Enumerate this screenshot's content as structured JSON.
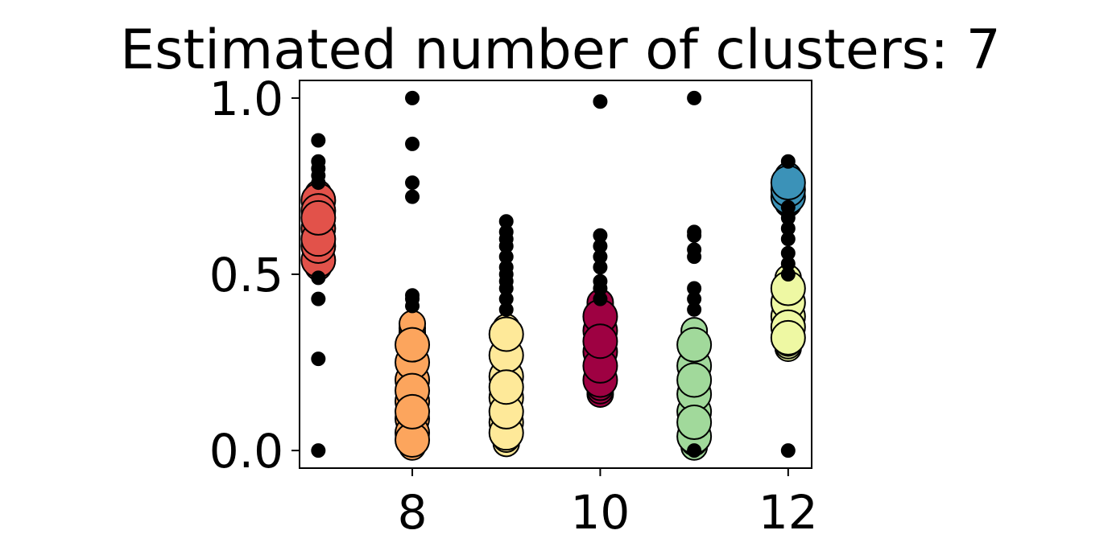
{
  "chart_data": {
    "type": "scatter",
    "title": "Estimated number of clusters: 7",
    "xlabel": "",
    "ylabel": "",
    "xlim": [
      6.8,
      12.25
    ],
    "ylim": [
      -0.05,
      1.05
    ],
    "xticks": [
      8,
      10,
      12
    ],
    "xtick_labels": [
      "8",
      "10",
      "12"
    ],
    "yticks": [
      0.0,
      0.5,
      1.0
    ],
    "ytick_labels": [
      "0.0",
      "0.5",
      "1.0"
    ],
    "grid": false,
    "legend": "none",
    "noise_color": "#000000",
    "clusters": [
      {
        "x": 7,
        "color": "#e2524a",
        "range": [
          0.52,
          0.73
        ],
        "core": [
          0.54,
          0.63,
          0.71,
          0.58,
          0.68,
          0.6,
          0.66
        ]
      },
      {
        "x": 8,
        "color": "#fca55d",
        "range": [
          0.01,
          0.36
        ],
        "core": [
          0.14,
          0.2,
          0.25,
          0.3,
          0.09,
          0.05,
          0.03,
          0.17,
          0.11
        ]
      },
      {
        "x": 9,
        "color": "#fee999",
        "range": [
          0.02,
          0.35
        ],
        "core": [
          0.08,
          0.15,
          0.21,
          0.27,
          0.33,
          0.05,
          0.11,
          0.18
        ]
      },
      {
        "x": 10,
        "color": "#9e0142",
        "range": [
          0.16,
          0.42
        ],
        "core": [
          0.28,
          0.34,
          0.2,
          0.24,
          0.38,
          0.31
        ]
      },
      {
        "x": 11,
        "color": "#a1d99b",
        "range": [
          0.01,
          0.34
        ],
        "core": [
          0.04,
          0.11,
          0.16,
          0.24,
          0.3,
          0.08,
          0.2
        ]
      },
      {
        "x": 12,
        "color": "#eef8a3",
        "range": [
          0.29,
          0.49
        ],
        "core": [
          0.38,
          0.42,
          0.35,
          0.46,
          0.32
        ]
      },
      {
        "x": 12,
        "color": "#3b92b8",
        "range": [
          0.7,
          0.78
        ],
        "core": [
          0.72,
          0.74,
          0.76
        ]
      }
    ],
    "noise": [
      {
        "x": 7,
        "y": [
          0.0,
          0.26,
          0.43,
          0.49,
          0.76,
          0.78,
          0.8,
          0.82,
          0.88
        ]
      },
      {
        "x": 8,
        "y": [
          0.41,
          0.43,
          0.44,
          0.72,
          0.76,
          0.87,
          1.0
        ]
      },
      {
        "x": 9,
        "y": [
          0.4,
          0.43,
          0.46,
          0.48,
          0.5,
          0.52,
          0.55,
          0.58,
          0.6,
          0.62,
          0.65
        ]
      },
      {
        "x": 10,
        "y": [
          0.43,
          0.46,
          0.48,
          0.52,
          0.55,
          0.58,
          0.61,
          0.99
        ]
      },
      {
        "x": 11,
        "y": [
          0.0,
          0.4,
          0.43,
          0.46,
          0.55,
          0.57,
          0.61,
          0.62,
          1.0
        ]
      },
      {
        "x": 12,
        "y": [
          0.0,
          0.5,
          0.53,
          0.56,
          0.6,
          0.63,
          0.66,
          0.69,
          0.82
        ]
      }
    ]
  }
}
